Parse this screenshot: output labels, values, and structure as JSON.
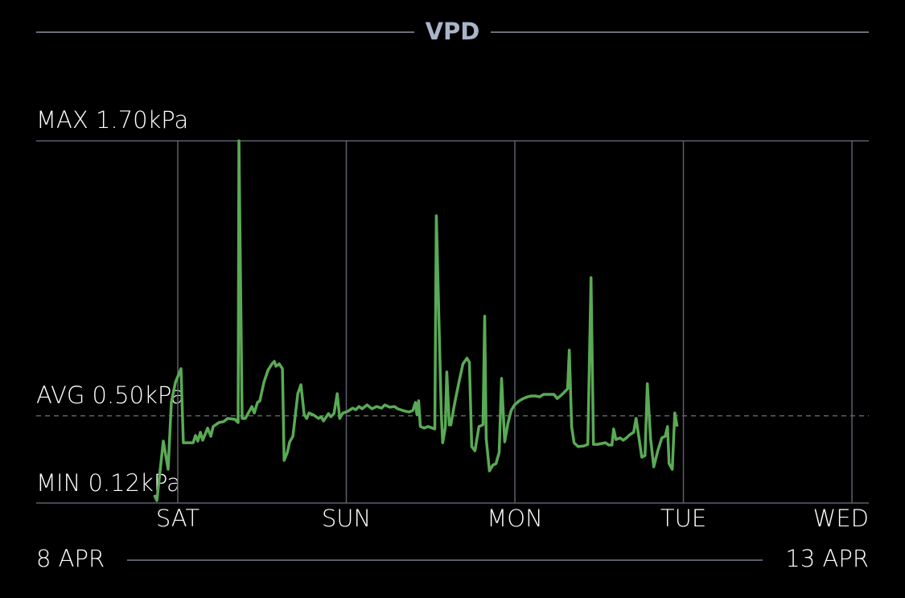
{
  "chart_data": {
    "type": "line",
    "title": "VPD",
    "unit": "kPa",
    "max_label": "MAX 1.70kPa",
    "avg_label": "AVG 0.50kPa",
    "min_label": "MIN 0.12kPa",
    "max": 1.7,
    "avg": 0.5,
    "min": 0.12,
    "ylim": [
      0.12,
      1.7
    ],
    "xlim": [
      8.16,
      13.1
    ],
    "x_unit": "day of April",
    "x_ticks": [
      {
        "label": "SAT",
        "day": 9
      },
      {
        "label": "SUN",
        "day": 10
      },
      {
        "label": "MON",
        "day": 11
      },
      {
        "label": "TUE",
        "day": 12
      },
      {
        "label": "WED",
        "day": 13
      }
    ],
    "start_label": "8 APR",
    "end_label": "13 APR",
    "grid": true,
    "colors": {
      "line": "#5aaa55",
      "grid": "#5b5f6c",
      "title": "#a9b5c9",
      "avg_line": "#8a8e98"
    },
    "series": [
      {
        "points": [
          [
            8.861,
            0.155
          ],
          [
            8.876,
            0.131
          ],
          [
            8.914,
            0.39
          ],
          [
            8.943,
            0.267
          ],
          [
            8.962,
            0.559
          ],
          [
            8.986,
            0.647
          ],
          [
            9.019,
            0.706
          ],
          [
            9.033,
            0.383
          ],
          [
            9.091,
            0.383
          ],
          [
            9.105,
            0.415
          ],
          [
            9.119,
            0.39
          ],
          [
            9.134,
            0.429
          ],
          [
            9.148,
            0.394
          ],
          [
            9.177,
            0.447
          ],
          [
            9.196,
            0.411
          ],
          [
            9.21,
            0.454
          ],
          [
            9.244,
            0.471
          ],
          [
            9.272,
            0.475
          ],
          [
            9.296,
            0.489
          ],
          [
            9.339,
            0.485
          ],
          [
            9.358,
            0.471
          ],
          [
            9.363,
            1.7
          ],
          [
            9.382,
            0.489
          ],
          [
            9.401,
            0.489
          ],
          [
            9.44,
            0.541
          ],
          [
            9.454,
            0.513
          ],
          [
            9.473,
            0.559
          ],
          [
            9.487,
            0.566
          ],
          [
            9.511,
            0.647
          ],
          [
            9.535,
            0.699
          ],
          [
            9.559,
            0.727
          ],
          [
            9.573,
            0.738
          ],
          [
            9.583,
            0.717
          ],
          [
            9.602,
            0.727
          ],
          [
            9.621,
            0.706
          ],
          [
            9.631,
            0.306
          ],
          [
            9.65,
            0.341
          ],
          [
            9.664,
            0.387
          ],
          [
            9.683,
            0.411
          ],
          [
            9.712,
            0.597
          ],
          [
            9.731,
            0.636
          ],
          [
            9.75,
            0.506
          ],
          [
            9.765,
            0.489
          ],
          [
            9.779,
            0.513
          ],
          [
            9.808,
            0.503
          ],
          [
            9.836,
            0.489
          ],
          [
            9.851,
            0.496
          ],
          [
            9.865,
            0.478
          ],
          [
            9.894,
            0.51
          ],
          [
            9.908,
            0.496
          ],
          [
            9.927,
            0.51
          ],
          [
            9.946,
            0.597
          ],
          [
            9.961,
            0.489
          ],
          [
            9.98,
            0.513
          ],
          [
            10.008,
            0.52
          ],
          [
            10.037,
            0.534
          ],
          [
            10.056,
            0.527
          ],
          [
            10.075,
            0.541
          ],
          [
            10.094,
            0.531
          ],
          [
            10.123,
            0.548
          ],
          [
            10.152,
            0.531
          ],
          [
            10.18,
            0.541
          ],
          [
            10.209,
            0.534
          ],
          [
            10.228,
            0.548
          ],
          [
            10.257,
            0.538
          ],
          [
            10.286,
            0.541
          ],
          [
            10.305,
            0.531
          ],
          [
            10.333,
            0.524
          ],
          [
            10.372,
            0.517
          ],
          [
            10.395,
            0.524
          ],
          [
            10.41,
            0.559
          ],
          [
            10.419,
            0.506
          ],
          [
            10.429,
            0.566
          ],
          [
            10.439,
            0.454
          ],
          [
            10.462,
            0.447
          ],
          [
            10.486,
            0.454
          ],
          [
            10.51,
            0.447
          ],
          [
            10.525,
            0.443
          ],
          [
            10.534,
            1.373
          ],
          [
            10.563,
            0.517
          ],
          [
            10.572,
            0.383
          ],
          [
            10.587,
            0.447
          ],
          [
            10.596,
            0.692
          ],
          [
            10.611,
            0.461
          ],
          [
            10.62,
            0.461
          ],
          [
            10.644,
            0.559
          ],
          [
            10.668,
            0.647
          ],
          [
            10.692,
            0.727
          ],
          [
            10.716,
            0.752
          ],
          [
            10.73,
            0.734
          ],
          [
            10.744,
            0.366
          ],
          [
            10.763,
            0.348
          ],
          [
            10.787,
            0.454
          ],
          [
            10.811,
            0.461
          ],
          [
            10.821,
            0.935
          ],
          [
            10.83,
            0.401
          ],
          [
            10.849,
            0.26
          ],
          [
            10.869,
            0.285
          ],
          [
            10.888,
            0.292
          ],
          [
            10.907,
            0.341
          ],
          [
            10.921,
            0.664
          ],
          [
            10.94,
            0.387
          ],
          [
            10.959,
            0.468
          ],
          [
            10.978,
            0.524
          ],
          [
            10.998,
            0.548
          ],
          [
            11.026,
            0.566
          ],
          [
            11.05,
            0.576
          ],
          [
            11.074,
            0.583
          ],
          [
            11.098,
            0.587
          ],
          [
            11.122,
            0.587
          ],
          [
            11.146,
            0.583
          ],
          [
            11.17,
            0.594
          ],
          [
            11.194,
            0.594
          ],
          [
            11.232,
            0.594
          ],
          [
            11.251,
            0.576
          ],
          [
            11.27,
            0.587
          ],
          [
            11.29,
            0.601
          ],
          [
            11.313,
            0.619
          ],
          [
            11.323,
            0.787
          ],
          [
            11.337,
            0.454
          ],
          [
            11.351,
            0.383
          ],
          [
            11.375,
            0.366
          ],
          [
            11.409,
            0.369
          ],
          [
            11.433,
            0.376
          ],
          [
            11.452,
            1.103
          ],
          [
            11.466,
            0.376
          ],
          [
            11.49,
            0.376
          ],
          [
            11.519,
            0.38
          ],
          [
            11.538,
            0.383
          ],
          [
            11.557,
            0.373
          ],
          [
            11.576,
            0.373
          ],
          [
            11.586,
            0.443
          ],
          [
            11.6,
            0.397
          ],
          [
            11.624,
            0.404
          ],
          [
            11.643,
            0.394
          ],
          [
            11.662,
            0.404
          ],
          [
            11.682,
            0.418
          ],
          [
            11.705,
            0.429
          ],
          [
            11.719,
            0.489
          ],
          [
            11.739,
            0.39
          ],
          [
            11.753,
            0.32
          ],
          [
            11.772,
            0.327
          ],
          [
            11.786,
            0.64
          ],
          [
            11.805,
            0.401
          ],
          [
            11.824,
            0.278
          ],
          [
            11.848,
            0.348
          ],
          [
            11.872,
            0.404
          ],
          [
            11.892,
            0.411
          ],
          [
            11.906,
            0.454
          ],
          [
            11.915,
            0.292
          ],
          [
            11.934,
            0.267
          ],
          [
            11.949,
            0.513
          ],
          [
            11.963,
            0.454
          ]
        ]
      }
    ]
  }
}
